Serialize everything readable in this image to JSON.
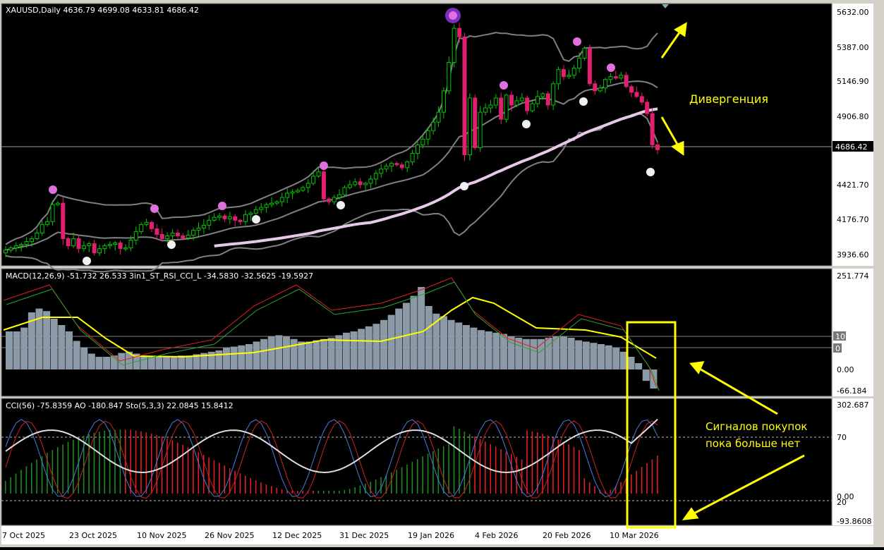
{
  "main": {
    "header": "XAUUSD,Daily  4636.79 4699.08 4633.81 4686.42",
    "price_ticks": [
      "5632.00",
      "5387.00",
      "5146.90",
      "4906.80",
      "4686.42",
      "4421.70",
      "4176.70",
      "3936.60"
    ],
    "current_price_label": "4686.42",
    "annotation": "Дивергенция"
  },
  "macd": {
    "header": "MACD(12,26,9) -51.732 26.533  3in1_ST_RSI_CCI_L -34.5830 -32.5625 -19.5927",
    "ticks": [
      "251.774",
      "10",
      "0",
      "0.00",
      "-66.184"
    ]
  },
  "cci": {
    "header": "CCI(56) -75.8359  AO -180.847  Sto(5,3,3) 22.0845 15.8412",
    "ticks": [
      "302.687",
      "70",
      "0.00",
      "20",
      "-93.8608"
    ],
    "annotation_line1": "Сигналов покупок",
    "annotation_line2": "пока больше нет"
  },
  "date_labels": [
    "7 Oct 2025",
    "23 Oct 2025",
    "10 Nov 2025",
    "26 Nov 2025",
    "12 Dec 2025",
    "31 Dec 2025",
    "19 Jan 2026",
    "4 Feb 2026",
    "20 Feb 2026",
    "10 Mar 2026"
  ],
  "colors": {
    "bull": "#00c800",
    "bear": "#e0206e",
    "bands": "#808080",
    "ma": "#e8c8e8",
    "macd_hist": "#8c9aa8",
    "signal": "#ffff00",
    "markers_top": "#e070e0",
    "markers_bottom": "#f0f0f0",
    "annotation": "#ffff00"
  },
  "chart_data": {
    "type": "line",
    "symbol": "XAUUSD",
    "timeframe": "Daily",
    "ohlc_last": {
      "open": 4636.79,
      "high": 4699.08,
      "low": 4633.81,
      "close": 4686.42
    },
    "close_approx": [
      3980,
      3995,
      4010,
      4020,
      4040,
      4060,
      4100,
      4160,
      4180,
      4300,
      4310,
      4060,
      4010,
      4060,
      3990,
      4010,
      4025,
      3960,
      3990,
      4010,
      4020,
      4030,
      3990,
      3995,
      4050,
      4110,
      4160,
      4175,
      4130,
      4090,
      4060,
      4080,
      4100,
      4080,
      4065,
      4085,
      4120,
      4135,
      4155,
      4190,
      4210,
      4220,
      4200,
      4215,
      4190,
      4180,
      4230,
      4240,
      4265,
      4280,
      4300,
      4310,
      4320,
      4350,
      4380,
      4390,
      4400,
      4420,
      4450,
      4500,
      4530,
      4340,
      4320,
      4350,
      4370,
      4420,
      4440,
      4460,
      4440,
      4450,
      4480,
      4520,
      4550,
      4570,
      4590,
      4580,
      4560,
      4600,
      4660,
      4720,
      4760,
      4820,
      4880,
      4950,
      5100,
      5300,
      5540,
      5480,
      4650,
      5050,
      4700,
      4950,
      4980,
      5000,
      5050,
      4900,
      5070,
      5000,
      5030,
      5050,
      4960,
      5010,
      5060,
      5080,
      5000,
      5150,
      5250,
      5200,
      5210,
      5260,
      5330,
      5400,
      5150,
      5100,
      5120,
      5180,
      5200,
      5190,
      5210,
      5130,
      5090,
      5060,
      5020,
      4940,
      4720,
      4686
    ]
  }
}
